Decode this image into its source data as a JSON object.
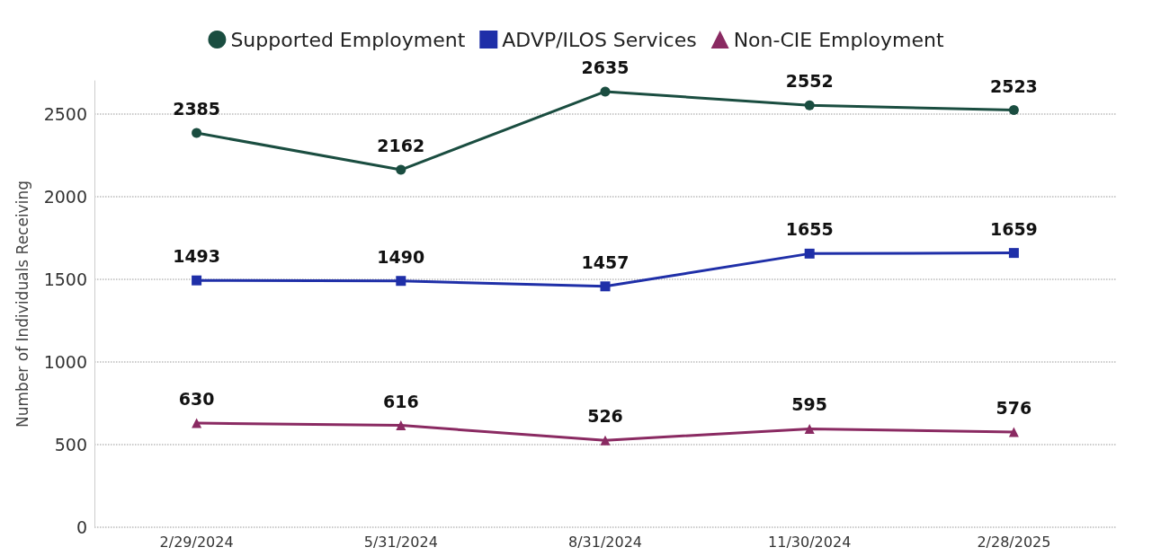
{
  "chart_data": {
    "type": "line",
    "ylabel": "Number of Individuals Receiving",
    "categories": [
      "2/29/2024",
      "5/31/2024",
      "8/31/2024",
      "11/30/2024",
      "2/28/2025"
    ],
    "series": [
      {
        "name": "Supported Employment",
        "color": "#1a4d40",
        "marker": "circle",
        "values": [
          2385,
          2162,
          2635,
          2552,
          2523
        ]
      },
      {
        "name": "ADVP/ILOS Services",
        "color": "#1f2fa8",
        "marker": "square",
        "values": [
          1493,
          1490,
          1457,
          1655,
          1659
        ]
      },
      {
        "name": "Non-CIE Employment",
        "color": "#8a2a62",
        "marker": "triangle",
        "values": [
          630,
          616,
          526,
          595,
          576
        ]
      }
    ],
    "ylim": [
      0,
      2700
    ],
    "yticks": [
      0,
      500,
      1000,
      1500,
      2000,
      2500
    ],
    "grid": "y",
    "legend": "top",
    "data_labels": true,
    "line_style": "solid"
  }
}
